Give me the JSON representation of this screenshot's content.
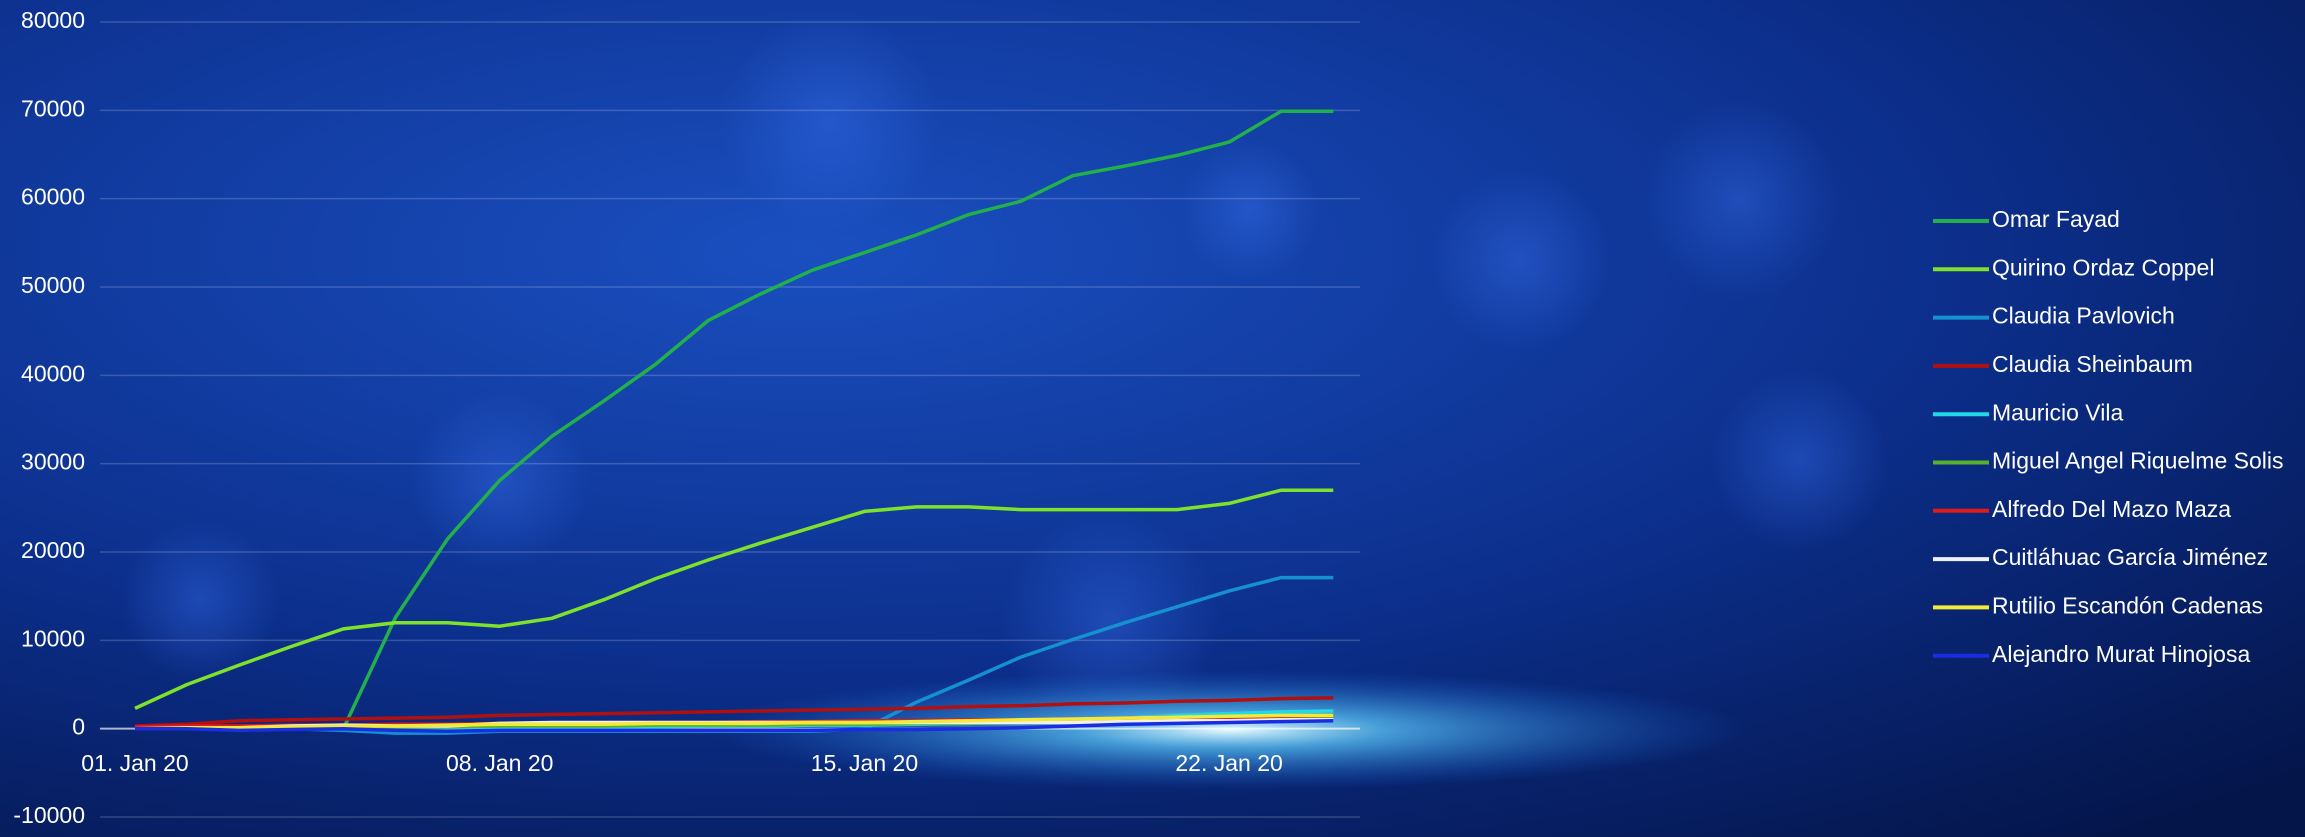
{
  "chart_data": {
    "type": "line",
    "categories": [
      "01. Jan 20",
      null,
      null,
      null,
      null,
      null,
      null,
      "08. Jan 20",
      null,
      null,
      null,
      null,
      null,
      null,
      "15. Jan 20",
      null,
      null,
      null,
      null,
      null,
      null,
      "22. Jan 20",
      null,
      null
    ],
    "series": [
      {
        "name": "Omar Fayad",
        "color": "#22b04b",
        "values": [
          0,
          0,
          0,
          0,
          0,
          12600,
          21500,
          28100,
          33100,
          37100,
          41300,
          46200,
          49200,
          51900,
          53900,
          55900,
          58200,
          59700,
          62600,
          63700,
          64900,
          66400,
          69900,
          69900
        ]
      },
      {
        "name": "Quirino Ordaz Coppel",
        "color": "#7ee22a",
        "values": [
          2300,
          5000,
          7200,
          9300,
          11300,
          12000,
          12000,
          11600,
          12500,
          14600,
          17000,
          19100,
          21000,
          22800,
          24600,
          25100,
          25100,
          24800,
          24800,
          24800,
          24800,
          25500,
          27000,
          27000
        ]
      },
      {
        "name": "Claudia Pavlovich",
        "color": "#1591d1",
        "values": [
          0,
          0,
          0,
          0,
          -200,
          -500,
          -500,
          -300,
          -300,
          -300,
          -300,
          -300,
          -300,
          -300,
          0,
          3000,
          5500,
          8100,
          10100,
          12000,
          13800,
          15600,
          17100,
          17100
        ]
      },
      {
        "name": "Claudia Sheinbaum",
        "color": "#b01010",
        "values": [
          300,
          500,
          900,
          1000,
          1100,
          1200,
          1300,
          1500,
          1600,
          1700,
          1800,
          1900,
          2000,
          2100,
          2200,
          2300,
          2500,
          2600,
          2800,
          2900,
          3100,
          3200,
          3400,
          3500
        ]
      },
      {
        "name": "Mauricio Vila",
        "color": "#22d8e8",
        "values": [
          0,
          0,
          0,
          200,
          200,
          0,
          -200,
          100,
          100,
          200,
          200,
          300,
          300,
          400,
          400,
          500,
          600,
          800,
          1000,
          1200,
          1500,
          1700,
          1900,
          2000
        ]
      },
      {
        "name": "Miguel Angel Riquelme Solis",
        "color": "#58b02c",
        "values": [
          0,
          0,
          100,
          100,
          100,
          200,
          200,
          300,
          300,
          300,
          400,
          400,
          400,
          500,
          500,
          600,
          600,
          700,
          800,
          900,
          1000,
          1100,
          1200,
          1300
        ]
      },
      {
        "name": "Alfredo Del Mazo Maza",
        "color": "#e01b1b",
        "values": [
          200,
          300,
          300,
          400,
          400,
          500,
          500,
          600,
          600,
          700,
          700,
          700,
          800,
          800,
          900,
          900,
          1000,
          1000,
          1100,
          1200,
          1300,
          1300,
          1400,
          1500
        ]
      },
      {
        "name": "Cuitláhuac García Jiménez",
        "color": "#f0f0f0",
        "values": [
          0,
          0,
          100,
          300,
          400,
          300,
          300,
          600,
          700,
          700,
          700,
          700,
          700,
          700,
          700,
          700,
          700,
          700,
          700,
          800,
          900,
          900,
          1000,
          1000
        ]
      },
      {
        "name": "Rutilio Escandón Cadenas",
        "color": "#f2ea3a",
        "values": [
          0,
          100,
          100,
          200,
          300,
          300,
          400,
          500,
          500,
          500,
          600,
          600,
          600,
          700,
          700,
          800,
          900,
          1000,
          1100,
          1200,
          1300,
          1400,
          1500,
          1500
        ]
      },
      {
        "name": "Alejandro Murat Hinojosa",
        "color": "#1a2de0",
        "values": [
          0,
          0,
          -200,
          -100,
          0,
          -200,
          -300,
          -200,
          -200,
          -200,
          -200,
          -200,
          -200,
          -200,
          -100,
          -100,
          0,
          100,
          300,
          500,
          600,
          700,
          800,
          900
        ]
      }
    ],
    "ylim": [
      -10000,
      80000
    ],
    "yticks": [
      -10000,
      0,
      10000,
      20000,
      30000,
      40000,
      50000,
      60000,
      70000,
      80000
    ],
    "grid": true,
    "legend": "right"
  }
}
